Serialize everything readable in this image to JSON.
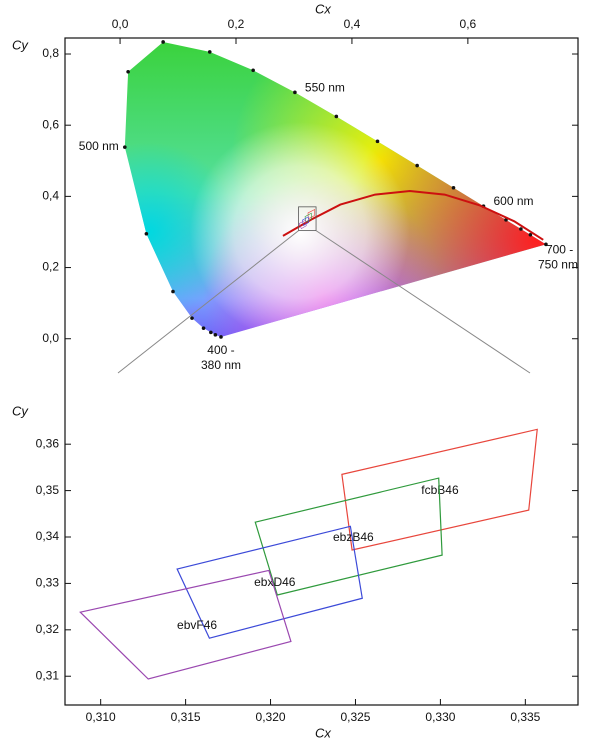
{
  "chart_data": [
    {
      "type": "chromaticity",
      "x_label": "Cx",
      "y_label": "Cy",
      "xlim": [
        -0.095,
        0.79
      ],
      "ylim": [
        -0.13,
        0.845
      ],
      "xticks": [
        {
          "value": 0,
          "label": "0,0"
        },
        {
          "value": 0.2,
          "label": "0,2"
        },
        {
          "value": 0.4,
          "label": "0,4"
        },
        {
          "value": 0.6,
          "label": "0,6"
        }
      ],
      "yticks": [
        {
          "value": 0,
          "label": "0,0"
        },
        {
          "value": 0.2,
          "label": "0,2"
        },
        {
          "value": 0.4,
          "label": "0,4"
        },
        {
          "value": 0.6,
          "label": "0,6"
        },
        {
          "value": 0.8,
          "label": "0,8"
        }
      ],
      "locus": {
        "x": [
          0.1741,
          0.1644,
          0.1566,
          0.144,
          0.1241,
          0.0913,
          0.0454,
          0.0082,
          0.0139,
          0.0743,
          0.1547,
          0.2296,
          0.3016,
          0.3731,
          0.4441,
          0.5125,
          0.5752,
          0.627,
          0.6658,
          0.6915,
          0.7079,
          0.7347
        ],
        "y": [
          0.005,
          0.0109,
          0.0177,
          0.0297,
          0.0578,
          0.1327,
          0.295,
          0.5384,
          0.7502,
          0.8338,
          0.8059,
          0.7543,
          0.6923,
          0.6245,
          0.5547,
          0.4866,
          0.4242,
          0.3725,
          0.334,
          0.3083,
          0.292,
          0.2653
        ],
        "labels": [
          "400 -\n380 nm",
          null,
          null,
          null,
          null,
          null,
          null,
          "500 nm",
          null,
          null,
          null,
          null,
          "550 nm",
          null,
          null,
          null,
          null,
          "600 nm",
          null,
          null,
          null,
          "700 -\n750 nm"
        ]
      },
      "planckian": {
        "color": "#cc1010",
        "x": [
          0.281,
          0.33,
          0.38,
          0.44,
          0.5,
          0.56,
          0.62,
          0.68,
          0.73
        ],
        "y": [
          0.289,
          0.335,
          0.377,
          0.405,
          0.415,
          0.405,
          0.375,
          0.33,
          0.278
        ]
      }
    },
    {
      "type": "polygon",
      "x_label": "Cx",
      "y_label": "Cy",
      "xlim": [
        0.3079,
        0.3381
      ],
      "ylim": [
        0.3038,
        0.3706
      ],
      "xticks": [
        {
          "value": 0.31,
          "label": "0,310"
        },
        {
          "value": 0.315,
          "label": "0,315"
        },
        {
          "value": 0.32,
          "label": "0,320"
        },
        {
          "value": 0.325,
          "label": "0,325"
        },
        {
          "value": 0.33,
          "label": "0,330"
        },
        {
          "value": 0.335,
          "label": "0,335"
        }
      ],
      "yticks": [
        {
          "value": 0.31,
          "label": "0,31"
        },
        {
          "value": 0.32,
          "label": "0,32"
        },
        {
          "value": 0.33,
          "label": "0,33"
        },
        {
          "value": 0.34,
          "label": "0,34"
        },
        {
          "value": 0.35,
          "label": "0,35"
        },
        {
          "value": 0.36,
          "label": "0,36"
        }
      ],
      "series": [
        {
          "name": "fcbB46",
          "color": "#e8463c",
          "x": [
            0.3242,
            0.3357,
            0.3352,
            0.3248
          ],
          "y": [
            0.3535,
            0.3632,
            0.3458,
            0.3372
          ]
        },
        {
          "name": "ebzB46",
          "color": "#2f9a3c",
          "x": [
            0.3191,
            0.3299,
            0.3301,
            0.3204
          ],
          "y": [
            0.3432,
            0.3527,
            0.3361,
            0.3275
          ]
        },
        {
          "name": "ebxD46",
          "color": "#3c4ad8",
          "x": [
            0.3145,
            0.3247,
            0.3254,
            0.3164
          ],
          "y": [
            0.3331,
            0.3423,
            0.3268,
            0.3182
          ]
        },
        {
          "name": "ebvF46",
          "color": "#9a48b0",
          "x": [
            0.3088,
            0.3199,
            0.3212,
            0.3128
          ],
          "y": [
            0.3238,
            0.3328,
            0.3175,
            0.3094
          ]
        }
      ]
    }
  ]
}
